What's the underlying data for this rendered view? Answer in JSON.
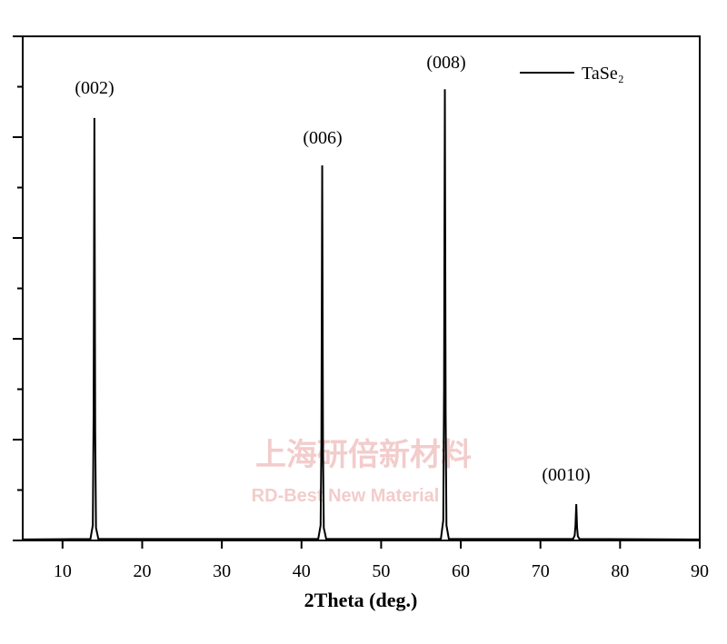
{
  "chart_data": {
    "type": "line",
    "x_label": "2Theta (deg.)",
    "x": [
      5,
      13.5,
      13.8,
      13.9,
      14.0,
      14.1,
      14.2,
      14.5,
      42.1,
      42.4,
      42.5,
      42.6,
      42.7,
      42.8,
      43.1,
      57.5,
      57.8,
      57.9,
      58.0,
      58.1,
      58.2,
      58.5,
      74.1,
      74.3,
      74.4,
      74.5,
      74.6,
      74.7,
      74.9,
      90
    ],
    "series": [
      {
        "name": "TaSe₂",
        "color": "#000000",
        "values": [
          0.02,
          0.03,
          0.3,
          2.5,
          8.38,
          2.2,
          0.25,
          0.03,
          0.03,
          0.3,
          2.0,
          7.44,
          1.8,
          0.25,
          0.03,
          0.03,
          0.4,
          3.0,
          8.95,
          2.5,
          0.3,
          0.03,
          0.03,
          0.1,
          0.3,
          0.72,
          0.25,
          0.08,
          0.03,
          0.02
        ]
      }
    ],
    "xlim": [
      5,
      90
    ],
    "xticks": [
      10,
      20,
      30,
      40,
      50,
      60,
      70,
      80,
      90
    ],
    "ylim": [
      0,
      10
    ],
    "yticks": [
      0,
      1,
      2,
      3,
      4,
      5,
      6,
      7,
      8,
      9,
      10
    ],
    "annotations": [
      "(002)",
      "(006)",
      "(008)",
      "(0010)"
    ],
    "watermark": [
      "上海研倍新材料",
      "RD-Best New Material"
    ],
    "legend": "upper right"
  }
}
